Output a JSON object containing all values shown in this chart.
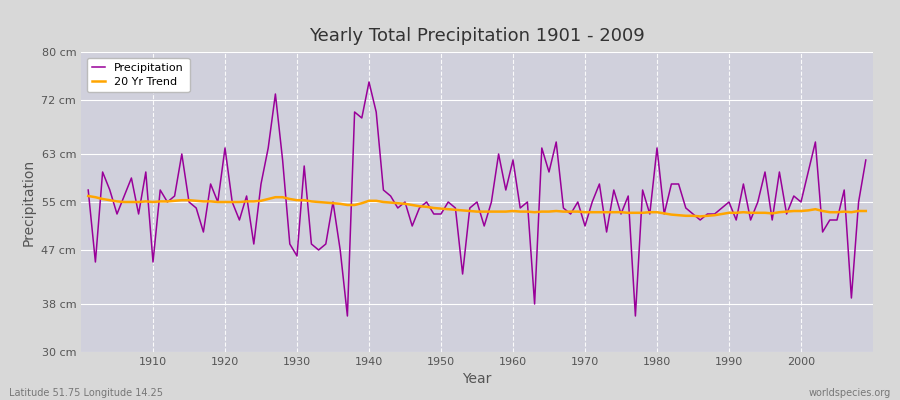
{
  "title": "Yearly Total Precipitation 1901 - 2009",
  "xlabel": "Year",
  "ylabel": "Precipitation",
  "subtitle_left": "Latitude 51.75 Longitude 14.25",
  "subtitle_right": "worldspecies.org",
  "bg_color": "#d8d8d8",
  "plot_bg_color": "#d0d0dc",
  "grid_color": "#ffffff",
  "line_color": "#990099",
  "trend_color": "#ffa500",
  "ylim": [
    30,
    80
  ],
  "yticks": [
    30,
    38,
    47,
    55,
    63,
    72,
    80
  ],
  "ytick_labels": [
    "30 cm",
    "38 cm",
    "47 cm",
    "55 cm",
    "63 cm",
    "72 cm",
    "80 cm"
  ],
  "years": [
    1901,
    1902,
    1903,
    1904,
    1905,
    1906,
    1907,
    1908,
    1909,
    1910,
    1911,
    1912,
    1913,
    1914,
    1915,
    1916,
    1917,
    1918,
    1919,
    1920,
    1921,
    1922,
    1923,
    1924,
    1925,
    1926,
    1927,
    1928,
    1929,
    1930,
    1931,
    1932,
    1933,
    1934,
    1935,
    1936,
    1937,
    1938,
    1939,
    1940,
    1941,
    1942,
    1943,
    1944,
    1945,
    1946,
    1947,
    1948,
    1949,
    1950,
    1951,
    1952,
    1953,
    1954,
    1955,
    1956,
    1957,
    1958,
    1959,
    1960,
    1961,
    1962,
    1963,
    1964,
    1965,
    1966,
    1967,
    1968,
    1969,
    1970,
    1971,
    1972,
    1973,
    1974,
    1975,
    1976,
    1977,
    1978,
    1979,
    1980,
    1981,
    1982,
    1983,
    1984,
    1985,
    1986,
    1987,
    1988,
    1989,
    1990,
    1991,
    1992,
    1993,
    1994,
    1995,
    1996,
    1997,
    1998,
    1999,
    2000,
    2001,
    2002,
    2003,
    2004,
    2005,
    2006,
    2007,
    2008,
    2009
  ],
  "precip": [
    57,
    45,
    60,
    57,
    53,
    56,
    59,
    53,
    60,
    45,
    57,
    55,
    56,
    63,
    55,
    54,
    50,
    58,
    55,
    64,
    55,
    52,
    56,
    48,
    58,
    64,
    73,
    62,
    48,
    46,
    61,
    48,
    47,
    48,
    55,
    47,
    36,
    70,
    69,
    75,
    70,
    57,
    56,
    54,
    55,
    51,
    54,
    55,
    53,
    53,
    55,
    54,
    43,
    54,
    55,
    51,
    55,
    63,
    57,
    62,
    54,
    55,
    38,
    64,
    60,
    65,
    54,
    53,
    55,
    51,
    55,
    58,
    50,
    57,
    53,
    56,
    36,
    57,
    53,
    64,
    53,
    58,
    58,
    54,
    53,
    52,
    53,
    53,
    54,
    55,
    52,
    58,
    52,
    55,
    60,
    52,
    60,
    53,
    56,
    55,
    60,
    65,
    50,
    52,
    52,
    57,
    39,
    55,
    62
  ],
  "trend": [
    56.0,
    55.8,
    55.5,
    55.3,
    55.1,
    55.0,
    55.0,
    55.0,
    55.1,
    55.0,
    55.1,
    55.1,
    55.2,
    55.3,
    55.3,
    55.2,
    55.1,
    55.1,
    55.0,
    55.0,
    55.0,
    55.0,
    55.1,
    55.1,
    55.2,
    55.5,
    55.8,
    55.8,
    55.5,
    55.3,
    55.3,
    55.1,
    55.0,
    54.9,
    54.8,
    54.7,
    54.5,
    54.5,
    54.8,
    55.2,
    55.2,
    55.0,
    54.9,
    54.8,
    54.7,
    54.5,
    54.3,
    54.2,
    54.0,
    53.9,
    53.8,
    53.7,
    53.6,
    53.5,
    53.4,
    53.4,
    53.4,
    53.4,
    53.4,
    53.5,
    53.4,
    53.4,
    53.3,
    53.4,
    53.4,
    53.5,
    53.4,
    53.4,
    53.4,
    53.3,
    53.3,
    53.3,
    53.3,
    53.3,
    53.3,
    53.2,
    53.2,
    53.2,
    53.3,
    53.3,
    53.1,
    52.9,
    52.8,
    52.7,
    52.7,
    52.6,
    52.7,
    52.8,
    53.0,
    53.2,
    53.2,
    53.3,
    53.2,
    53.2,
    53.2,
    53.1,
    53.3,
    53.4,
    53.5,
    53.5,
    53.6,
    53.8,
    53.5,
    53.3,
    53.3,
    53.4,
    53.3,
    53.5,
    53.5
  ]
}
